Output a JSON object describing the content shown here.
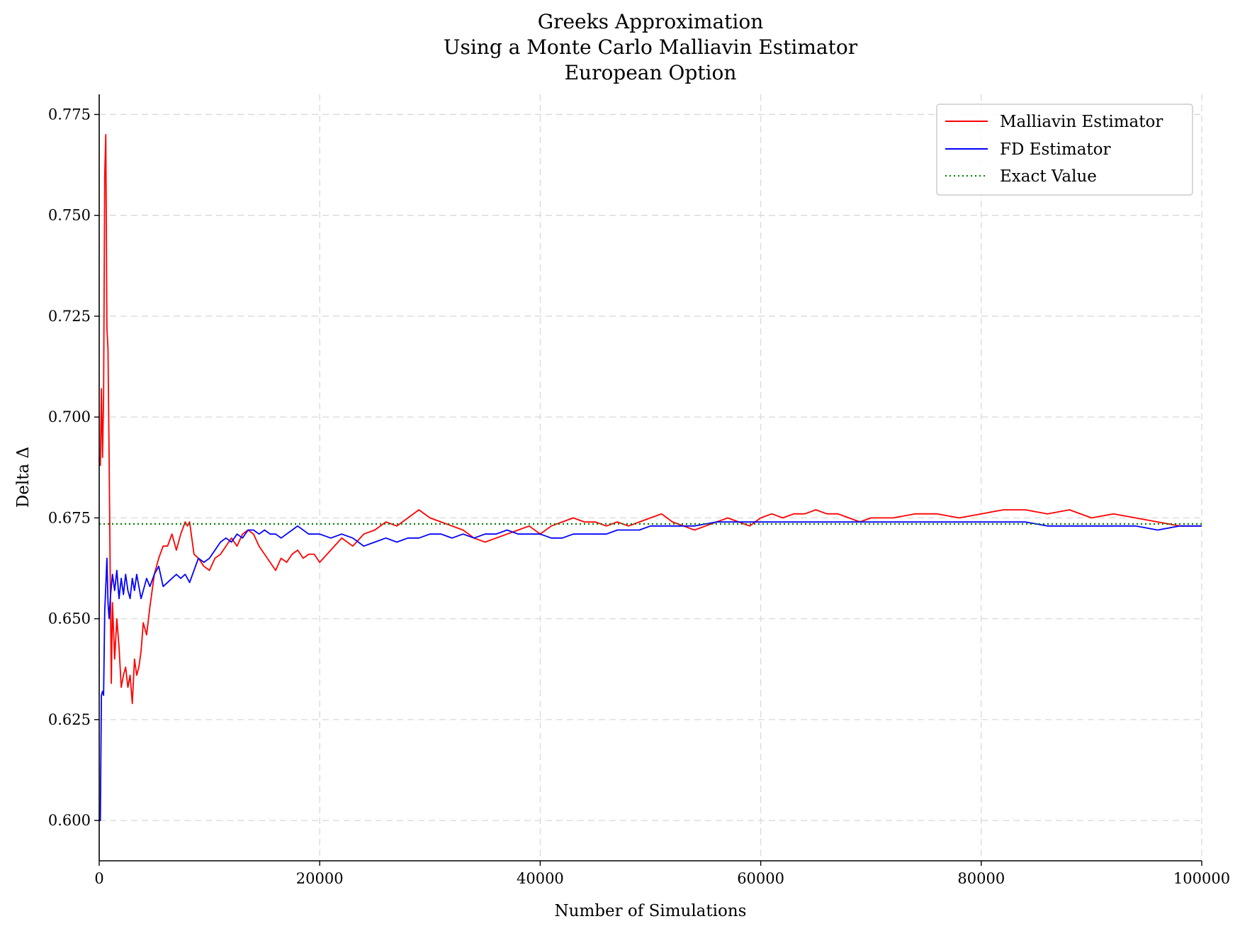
{
  "chart_data": {
    "type": "line",
    "title": [
      "Greeks Approximation",
      "Using a Monte Carlo Malliavin Estimator",
      "European Option"
    ],
    "xlabel": "Number of Simulations",
    "ylabel": "Delta Δ",
    "xlim": [
      0,
      100000
    ],
    "ylim": [
      0.59,
      0.78
    ],
    "x_ticks": [
      0,
      20000,
      40000,
      60000,
      80000,
      100000
    ],
    "x_tick_labels": [
      "0",
      "20000",
      "40000",
      "60000",
      "80000",
      "100000"
    ],
    "y_ticks": [
      0.6,
      0.625,
      0.65,
      0.675,
      0.7,
      0.725,
      0.75,
      0.775
    ],
    "y_tick_labels": [
      "0.600",
      "0.625",
      "0.650",
      "0.675",
      "0.700",
      "0.725",
      "0.750",
      "0.775"
    ],
    "grid": true,
    "legend_position": "top-right",
    "series": [
      {
        "name": "Malliavin Estimator",
        "color": "#ff0000",
        "style": "solid",
        "x": [
          0,
          100,
          200,
          300,
          400,
          500,
          600,
          700,
          800,
          900,
          1000,
          1100,
          1200,
          1400,
          1600,
          1800,
          2000,
          2200,
          2400,
          2600,
          2800,
          3000,
          3200,
          3400,
          3600,
          3800,
          4000,
          4300,
          4600,
          5000,
          5400,
          5800,
          6200,
          6600,
          7000,
          7400,
          7800,
          8000,
          8200,
          8600,
          9000,
          9500,
          10000,
          10500,
          11000,
          11500,
          12000,
          12500,
          13000,
          13500,
          14000,
          14500,
          15000,
          15500,
          16000,
          16500,
          17000,
          17500,
          18000,
          18500,
          19000,
          19500,
          20000,
          21000,
          22000,
          23000,
          24000,
          25000,
          26000,
          27000,
          28000,
          29000,
          30000,
          31000,
          32000,
          33000,
          34000,
          35000,
          36000,
          37000,
          38000,
          39000,
          40000,
          41000,
          42000,
          43000,
          44000,
          45000,
          46000,
          47000,
          48000,
          49000,
          50000,
          51000,
          52000,
          53000,
          54000,
          55000,
          56000,
          57000,
          58000,
          59000,
          60000,
          61000,
          62000,
          63000,
          64000,
          65000,
          66000,
          67000,
          68000,
          69000,
          70000,
          72000,
          74000,
          76000,
          78000,
          80000,
          82000,
          84000,
          86000,
          88000,
          90000,
          92000,
          94000,
          96000,
          98000,
          100000
        ],
        "values": [
          0.69,
          0.688,
          0.707,
          0.69,
          0.705,
          0.76,
          0.77,
          0.722,
          0.717,
          0.69,
          0.66,
          0.634,
          0.654,
          0.64,
          0.65,
          0.643,
          0.633,
          0.636,
          0.638,
          0.633,
          0.636,
          0.629,
          0.64,
          0.636,
          0.638,
          0.642,
          0.649,
          0.646,
          0.653,
          0.661,
          0.665,
          0.668,
          0.668,
          0.671,
          0.667,
          0.671,
          0.674,
          0.673,
          0.674,
          0.666,
          0.665,
          0.663,
          0.662,
          0.665,
          0.666,
          0.668,
          0.67,
          0.668,
          0.671,
          0.672,
          0.671,
          0.668,
          0.666,
          0.664,
          0.662,
          0.665,
          0.664,
          0.666,
          0.667,
          0.665,
          0.666,
          0.666,
          0.664,
          0.667,
          0.67,
          0.668,
          0.671,
          0.672,
          0.674,
          0.673,
          0.675,
          0.677,
          0.675,
          0.674,
          0.673,
          0.672,
          0.67,
          0.669,
          0.67,
          0.671,
          0.672,
          0.673,
          0.671,
          0.673,
          0.674,
          0.675,
          0.674,
          0.674,
          0.673,
          0.674,
          0.673,
          0.674,
          0.675,
          0.676,
          0.674,
          0.673,
          0.672,
          0.673,
          0.674,
          0.675,
          0.674,
          0.673,
          0.675,
          0.676,
          0.675,
          0.676,
          0.676,
          0.677,
          0.676,
          0.676,
          0.675,
          0.674,
          0.675,
          0.675,
          0.676,
          0.676,
          0.675,
          0.676,
          0.677,
          0.677,
          0.676,
          0.677,
          0.675,
          0.676,
          0.675,
          0.674,
          0.673,
          0.673
        ]
      },
      {
        "name": "FD Estimator",
        "color": "#0000ff",
        "style": "solid",
        "x": [
          0,
          100,
          200,
          300,
          400,
          500,
          600,
          700,
          800,
          900,
          1000,
          1200,
          1400,
          1600,
          1800,
          2000,
          2200,
          2400,
          2600,
          2800,
          3000,
          3200,
          3400,
          3600,
          3800,
          4000,
          4300,
          4600,
          5000,
          5400,
          5800,
          6200,
          6600,
          7000,
          7400,
          7800,
          8200,
          8600,
          9000,
          9500,
          10000,
          10500,
          11000,
          11500,
          12000,
          12500,
          13000,
          13500,
          14000,
          14500,
          15000,
          15500,
          16000,
          16500,
          17000,
          17500,
          18000,
          19000,
          20000,
          21000,
          22000,
          23000,
          24000,
          25000,
          26000,
          27000,
          28000,
          29000,
          30000,
          31000,
          32000,
          33000,
          34000,
          35000,
          36000,
          37000,
          38000,
          39000,
          40000,
          41000,
          42000,
          43000,
          44000,
          45000,
          46000,
          47000,
          48000,
          49000,
          50000,
          52000,
          54000,
          56000,
          58000,
          60000,
          62000,
          64000,
          66000,
          68000,
          70000,
          72000,
          74000,
          76000,
          78000,
          80000,
          82000,
          84000,
          86000,
          88000,
          90000,
          92000,
          94000,
          96000,
          98000,
          100000
        ],
        "values": [
          0.6,
          0.6,
          0.631,
          0.632,
          0.631,
          0.652,
          0.658,
          0.665,
          0.654,
          0.65,
          0.655,
          0.661,
          0.657,
          0.662,
          0.655,
          0.66,
          0.656,
          0.661,
          0.657,
          0.655,
          0.66,
          0.657,
          0.661,
          0.658,
          0.655,
          0.657,
          0.66,
          0.658,
          0.661,
          0.663,
          0.658,
          0.659,
          0.66,
          0.661,
          0.66,
          0.661,
          0.659,
          0.662,
          0.665,
          0.664,
          0.665,
          0.667,
          0.669,
          0.67,
          0.669,
          0.671,
          0.67,
          0.672,
          0.672,
          0.671,
          0.672,
          0.671,
          0.671,
          0.67,
          0.671,
          0.672,
          0.673,
          0.671,
          0.671,
          0.67,
          0.671,
          0.67,
          0.668,
          0.669,
          0.67,
          0.669,
          0.67,
          0.67,
          0.671,
          0.671,
          0.67,
          0.671,
          0.67,
          0.671,
          0.671,
          0.672,
          0.671,
          0.671,
          0.671,
          0.67,
          0.67,
          0.671,
          0.671,
          0.671,
          0.671,
          0.672,
          0.672,
          0.672,
          0.673,
          0.673,
          0.673,
          0.674,
          0.674,
          0.674,
          0.674,
          0.674,
          0.674,
          0.674,
          0.674,
          0.674,
          0.674,
          0.674,
          0.674,
          0.674,
          0.674,
          0.674,
          0.673,
          0.673,
          0.673,
          0.673,
          0.673,
          0.672,
          0.673,
          0.673
        ]
      },
      {
        "name": "Exact Value",
        "color": "#008000",
        "style": "dotted",
        "x": [
          0,
          100000
        ],
        "values": [
          0.6735,
          0.6735
        ]
      }
    ]
  }
}
